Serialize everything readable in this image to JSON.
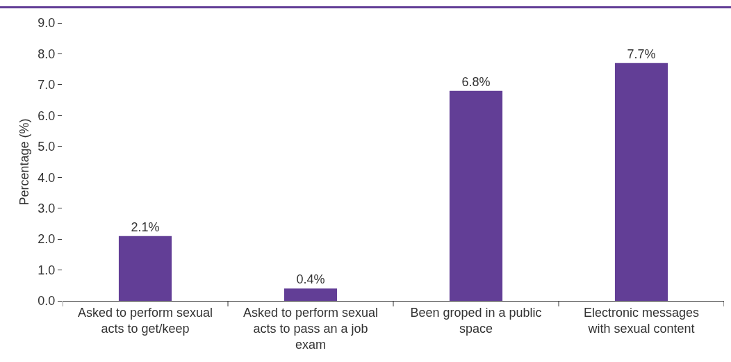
{
  "chart_data": {
    "type": "bar",
    "ylabel": "Percentage (%)",
    "categories": [
      "Asked to perform sexual acts to get/keep",
      "Asked to perform sexual acts to pass an a job exam",
      "Been groped in a public space",
      "Electronic messages with sexual content"
    ],
    "values": [
      2.1,
      0.4,
      6.8,
      7.7
    ],
    "value_labels": [
      "2.1%",
      "0.4%",
      "6.8%",
      "7.7%"
    ],
    "color": "#623e96",
    "ylim": [
      0,
      9
    ],
    "yticks": [
      {
        "value": 0,
        "label": "0.0"
      },
      {
        "value": 1,
        "label": "1.0"
      },
      {
        "value": 2,
        "label": "2.0"
      },
      {
        "value": 3,
        "label": "3.0"
      },
      {
        "value": 4,
        "label": "4.0"
      },
      {
        "value": 5,
        "label": "5.0"
      },
      {
        "value": 6,
        "label": "6.0"
      },
      {
        "value": 7,
        "label": "7.0"
      },
      {
        "value": 8,
        "label": "8.0"
      },
      {
        "value": 9,
        "label": "9.0"
      }
    ],
    "grid": false
  }
}
